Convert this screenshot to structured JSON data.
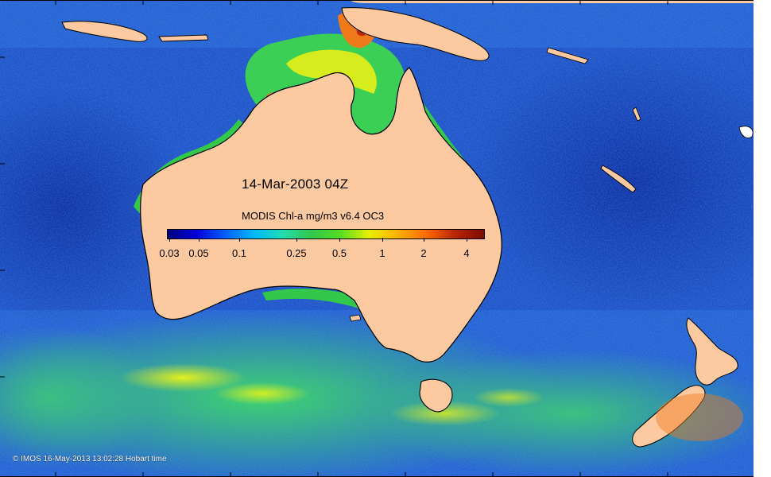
{
  "map": {
    "title": "14-Mar-2003 04Z",
    "colorbar": {
      "title": "MODIS Chl-a mg/m3 v6.4 OC3",
      "colors": [
        "#00007f",
        "#0000d8",
        "#0060ff",
        "#00b8ff",
        "#22ddb0",
        "#33c84a",
        "#55dd22",
        "#e6f000",
        "#ffb000",
        "#ff6a00",
        "#b82400",
        "#7a0c00"
      ],
      "labels": [
        "0.03",
        "0.05",
        "0.1",
        "0.25",
        "0.5",
        "1",
        "2",
        "4"
      ]
    },
    "credit": "© IMOS 16-May-2013 13:02:28 Hobart time",
    "palette": {
      "land": "#fcc9a0",
      "deep_ocean": "#1f3fbe",
      "mid_ocean": "#2d6fd8",
      "coastal_green": "#2fcf6a",
      "bloom_yellow": "#d6ec1c",
      "bloom_orange": "#f0701a",
      "bloom_red": "#c02a0a"
    }
  }
}
